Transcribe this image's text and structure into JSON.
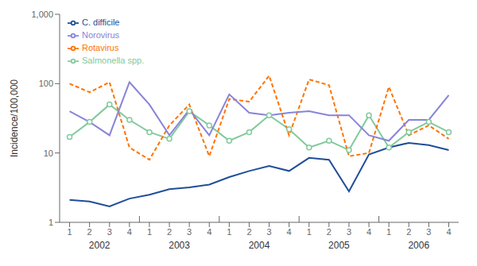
{
  "chart_data": {
    "type": "line",
    "y_label": "Incidence/100,000",
    "categories": [
      "1",
      "2",
      "3",
      "4",
      "1",
      "2",
      "3",
      "4",
      "1",
      "2",
      "3",
      "4",
      "1",
      "2",
      "3",
      "4",
      "1",
      "2",
      "3",
      "4"
    ],
    "annotations": [
      "2002",
      "2003",
      "2004",
      "2005",
      "2006"
    ],
    "series": [
      {
        "name": "C. difficile",
        "color": "#1f4e99",
        "line_style": "solid",
        "marker": "none",
        "values": [
          2.1,
          2.0,
          1.7,
          2.2,
          2.5,
          3.0,
          3.2,
          3.5,
          4.5,
          5.5,
          6.5,
          5.5,
          8.5,
          8.0,
          2.8,
          9.5,
          12.0,
          14.0,
          13.0,
          11.0
        ]
      },
      {
        "name": "Salmonella spp.",
        "color": "#82ca9d",
        "line_style": "solid",
        "marker": "circle",
        "values": [
          17,
          28,
          50,
          30,
          20,
          16,
          40,
          25,
          15,
          20,
          35,
          22,
          12,
          15,
          11,
          35,
          12,
          20,
          28,
          20
        ]
      },
      {
        "name": "Rotavirus",
        "color": "#ff7300",
        "line_style": "dashed",
        "marker": "none",
        "values": [
          100,
          75,
          105,
          12,
          8,
          25,
          50,
          9,
          60,
          55,
          130,
          18,
          115,
          95,
          9,
          10,
          90,
          18,
          25,
          16
        ]
      },
      {
        "name": "Norovirus",
        "color": "#8884d8",
        "line_style": "solid",
        "marker": "none",
        "values": [
          40,
          28,
          18,
          105,
          50,
          18,
          42,
          18,
          70,
          38,
          35,
          38,
          40,
          35,
          35,
          18,
          15,
          30,
          30,
          68
        ]
      }
    ],
    "ylim": [
      1,
      1000
    ],
    "yticks": [
      1,
      10,
      100,
      {
        "value": 1000,
        "label": "1,000"
      }
    ],
    "log": "y",
    "grid": false,
    "legend": "upper left"
  }
}
